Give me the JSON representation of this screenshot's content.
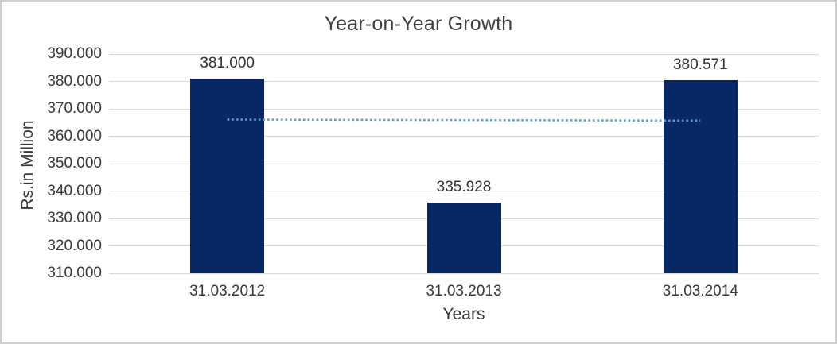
{
  "chart_data": {
    "type": "bar",
    "title": "Year-on-Year Growth",
    "xlabel": "Years",
    "ylabel": "Rs.in Million",
    "categories": [
      "31.03.2012",
      "31.03.2013",
      "31.03.2014"
    ],
    "values": [
      381.0,
      335.928,
      380.571
    ],
    "data_labels": [
      "381.000",
      "335.928",
      "380.571"
    ],
    "ylim": [
      310,
      390
    ],
    "ytick_step": 10,
    "ytick_labels": [
      "310.000",
      "320.000",
      "330.000",
      "340.000",
      "350.000",
      "360.000",
      "370.000",
      "380.000",
      "390.000"
    ],
    "grid": "horizontal",
    "legend": "none",
    "trendline": {
      "kind": "linear",
      "style": "dotted",
      "start_value": 366.1,
      "end_value": 365.7
    },
    "colors": {
      "bar": "#082865",
      "trendline": "#5b9bd5",
      "gridline": "#d9d9d9",
      "text": "#383838",
      "frame_border": "#cfcfcf",
      "background": "#ffffff"
    }
  }
}
